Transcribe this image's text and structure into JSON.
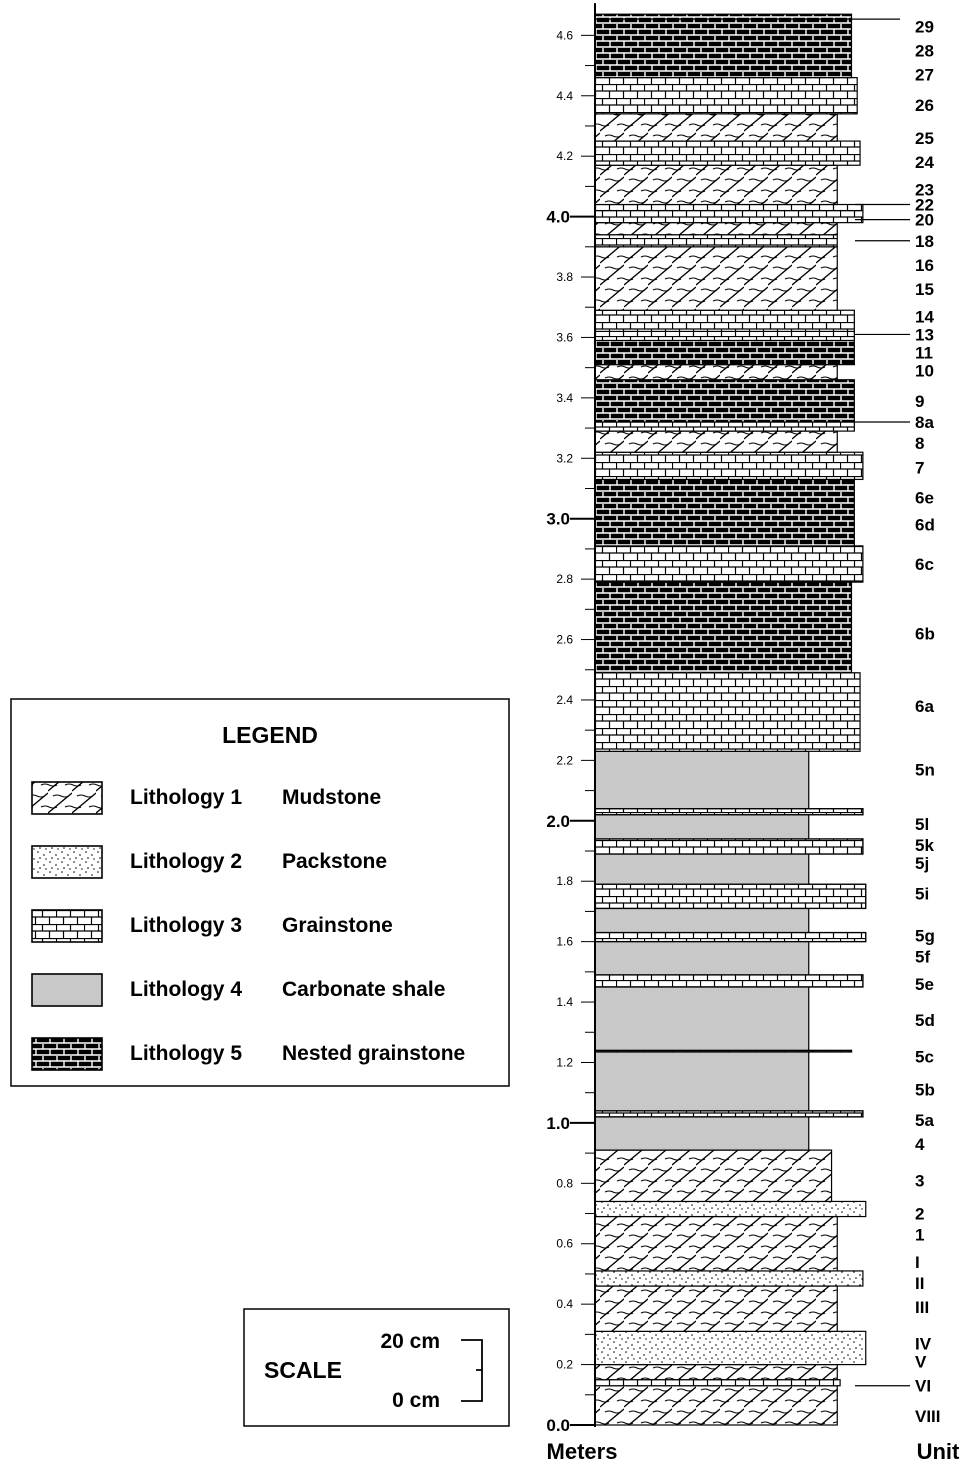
{
  "axis": {
    "title": "Meters",
    "min": 0,
    "max": 4.7,
    "major_ticks": [
      {
        "v": 0.0,
        "label": "0.0"
      },
      {
        "v": 1.0,
        "label": "1.0"
      },
      {
        "v": 2.0,
        "label": "2.0"
      },
      {
        "v": 3.0,
        "label": "3.0"
      },
      {
        "v": 4.0,
        "label": "4.0"
      }
    ],
    "minor_ticks": [
      {
        "v": 0.2,
        "label": "0.2"
      },
      {
        "v": 0.4,
        "label": "0.4"
      },
      {
        "v": 0.6,
        "label": "0.6"
      },
      {
        "v": 0.8,
        "label": "0.8"
      },
      {
        "v": 1.2,
        "label": "1.2"
      },
      {
        "v": 1.4,
        "label": "1.4"
      },
      {
        "v": 1.6,
        "label": "1.6"
      },
      {
        "v": 1.8,
        "label": "1.8"
      },
      {
        "v": 2.2,
        "label": "2.2"
      },
      {
        "v": 2.4,
        "label": "2.4"
      },
      {
        "v": 2.6,
        "label": "2.6"
      },
      {
        "v": 2.8,
        "label": "2.8"
      },
      {
        "v": 3.2,
        "label": "3.2"
      },
      {
        "v": 3.4,
        "label": "3.4"
      },
      {
        "v": 3.6,
        "label": "3.6"
      },
      {
        "v": 3.8,
        "label": "3.8"
      },
      {
        "v": 4.2,
        "label": "4.2"
      },
      {
        "v": 4.4,
        "label": "4.4"
      },
      {
        "v": 4.6,
        "label": "4.6"
      }
    ],
    "unlabeled_ticks": [
      0.1,
      0.3,
      0.5,
      0.7,
      0.9,
      1.1,
      1.3,
      1.5,
      1.7,
      1.9,
      2.1,
      2.3,
      2.5,
      2.7,
      2.9,
      3.1,
      3.3,
      3.5,
      3.7,
      3.9,
      4.1,
      4.3,
      4.5
    ]
  },
  "unit_column_title": "Unit",
  "legend": {
    "title": "LEGEND",
    "items": [
      {
        "pattern": "mudstone",
        "label": "Lithology 1",
        "name": "Mudstone"
      },
      {
        "pattern": "packstone",
        "label": "Lithology 2",
        "name": "Packstone"
      },
      {
        "pattern": "grainstone",
        "label": "Lithology 3",
        "name": "Grainstone"
      },
      {
        "pattern": "shale",
        "label": "Lithology 4",
        "name": "Carbonate shale"
      },
      {
        "pattern": "nested",
        "label": "Lithology 5",
        "name": "Nested grainstone"
      }
    ]
  },
  "scale": {
    "title": "SCALE",
    "top_label": "20 cm",
    "bottom_label": "0 cm"
  },
  "beds": [
    {
      "from": 0.0,
      "to": 0.13,
      "lith": "mudstone",
      "width": 0.85
    },
    {
      "from": 0.13,
      "to": 0.15,
      "lith": "grainstone",
      "width": 0.86
    },
    {
      "from": 0.15,
      "to": 0.2,
      "lith": "mudstone",
      "width": 0.85
    },
    {
      "from": 0.2,
      "to": 0.31,
      "lith": "packstone",
      "width": 0.95
    },
    {
      "from": 0.31,
      "to": 0.46,
      "lith": "mudstone",
      "width": 0.85
    },
    {
      "from": 0.46,
      "to": 0.51,
      "lith": "packstone",
      "width": 0.94
    },
    {
      "from": 0.51,
      "to": 0.69,
      "lith": "mudstone",
      "width": 0.85
    },
    {
      "from": 0.69,
      "to": 0.74,
      "lith": "packstone",
      "width": 0.95
    },
    {
      "from": 0.74,
      "to": 0.91,
      "lith": "mudstone",
      "width": 0.83
    },
    {
      "from": 0.91,
      "to": 2.23,
      "lith": "shale",
      "width": 0.75
    },
    {
      "from": 2.23,
      "to": 2.49,
      "lith": "grainstone",
      "width": 0.93
    },
    {
      "from": 2.49,
      "to": 2.79,
      "lith": "nested",
      "width": 0.9
    },
    {
      "from": 2.79,
      "to": 2.91,
      "lith": "grainstone",
      "width": 0.94
    },
    {
      "from": 2.91,
      "to": 3.13,
      "lith": "nested",
      "width": 0.91
    },
    {
      "from": 3.13,
      "to": 3.22,
      "lith": "grainstone",
      "width": 0.94
    },
    {
      "from": 3.22,
      "to": 3.29,
      "lith": "mudstone",
      "width": 0.85
    },
    {
      "from": 3.29,
      "to": 3.32,
      "lith": "grainstone",
      "width": 0.91
    },
    {
      "from": 3.32,
      "to": 3.46,
      "lith": "nested",
      "width": 0.91
    },
    {
      "from": 3.46,
      "to": 3.51,
      "lith": "mudstone",
      "width": 0.85
    },
    {
      "from": 3.51,
      "to": 3.59,
      "lith": "nested",
      "width": 0.91
    },
    {
      "from": 3.59,
      "to": 3.62,
      "lith": "grainstone",
      "width": 0.91
    },
    {
      "from": 3.62,
      "to": 3.69,
      "lith": "grainstone",
      "width": 0.91
    },
    {
      "from": 3.69,
      "to": 3.9,
      "lith": "mudstone",
      "width": 0.85
    },
    {
      "from": 3.9,
      "to": 3.94,
      "lith": "grainstone",
      "width": 0.85
    },
    {
      "from": 3.94,
      "to": 3.98,
      "lith": "mudstone",
      "width": 0.85
    },
    {
      "from": 3.98,
      "to": 4.02,
      "lith": "grainstone",
      "width": 0.94
    },
    {
      "from": 4.02,
      "to": 4.04,
      "lith": "grainstone",
      "width": 0.94
    },
    {
      "from": 4.04,
      "to": 4.17,
      "lith": "mudstone",
      "width": 0.85
    },
    {
      "from": 4.17,
      "to": 4.25,
      "lith": "grainstone",
      "width": 0.93
    },
    {
      "from": 4.25,
      "to": 4.34,
      "lith": "mudstone",
      "width": 0.85
    },
    {
      "from": 4.34,
      "to": 4.46,
      "lith": "grainstone",
      "width": 0.92
    },
    {
      "from": 4.46,
      "to": 4.67,
      "lith": "nested",
      "width": 0.9
    }
  ],
  "shale_beds": [
    {
      "at": 1.02,
      "to": 1.04,
      "width": 0.94
    },
    {
      "at": 1.24,
      "to": 1.24,
      "width": 0.9
    },
    {
      "at": 1.45,
      "to": 1.49,
      "width": 0.94
    },
    {
      "at": 1.6,
      "to": 1.63,
      "width": 0.95
    },
    {
      "at": 1.71,
      "to": 1.79,
      "width": 0.95
    },
    {
      "at": 1.89,
      "to": 1.94,
      "width": 0.94
    },
    {
      "at": 2.02,
      "to": 2.04,
      "width": 0.94
    }
  ],
  "units": [
    {
      "label": "VIII",
      "v": 0.03
    },
    {
      "label": "VI",
      "v": 0.13,
      "leader": true
    },
    {
      "label": "V",
      "v": 0.21
    },
    {
      "label": "IV",
      "v": 0.27
    },
    {
      "label": "III",
      "v": 0.39
    },
    {
      "label": "II",
      "v": 0.47
    },
    {
      "label": "I",
      "v": 0.54
    },
    {
      "label": "1",
      "v": 0.63
    },
    {
      "label": "2",
      "v": 0.7
    },
    {
      "label": "3",
      "v": 0.81
    },
    {
      "label": "4",
      "v": 0.93
    },
    {
      "label": "5a",
      "v": 1.01
    },
    {
      "label": "5b",
      "v": 1.11
    },
    {
      "label": "5c",
      "v": 1.22
    },
    {
      "label": "5d",
      "v": 1.34
    },
    {
      "label": "5e",
      "v": 1.46
    },
    {
      "label": "5f",
      "v": 1.55
    },
    {
      "label": "5g",
      "v": 1.62
    },
    {
      "label": "5i",
      "v": 1.76
    },
    {
      "label": "5j",
      "v": 1.86
    },
    {
      "label": "5k",
      "v": 1.92
    },
    {
      "label": "5l",
      "v": 1.99
    },
    {
      "label": "5n",
      "v": 2.17
    },
    {
      "label": "6a",
      "v": 2.38
    },
    {
      "label": "6b",
      "v": 2.62
    },
    {
      "label": "6c",
      "v": 2.85
    },
    {
      "label": "6d",
      "v": 2.98
    },
    {
      "label": "6e",
      "v": 3.07
    },
    {
      "label": "7",
      "v": 3.17
    },
    {
      "label": "8",
      "v": 3.25
    },
    {
      "label": "8a",
      "v": 3.32,
      "leader": true
    },
    {
      "label": "9",
      "v": 3.39
    },
    {
      "label": "10",
      "v": 3.49
    },
    {
      "label": "11",
      "v": 3.55
    },
    {
      "label": "13",
      "v": 3.61,
      "leader": true
    },
    {
      "label": "14",
      "v": 3.67
    },
    {
      "label": "15",
      "v": 3.76
    },
    {
      "label": "16",
      "v": 3.84
    },
    {
      "label": "18",
      "v": 3.92,
      "leader": true
    },
    {
      "label": "20",
      "v": 3.99,
      "leader": true
    },
    {
      "label": "22",
      "v": 4.04,
      "leader": true
    },
    {
      "label": "23",
      "v": 4.09
    },
    {
      "label": "24",
      "v": 4.18
    },
    {
      "label": "25",
      "v": 4.26
    },
    {
      "label": "26",
      "v": 4.37
    },
    {
      "label": "27",
      "v": 4.47
    },
    {
      "label": "28",
      "v": 4.55
    },
    {
      "label": "29",
      "v": 4.63
    }
  ]
}
